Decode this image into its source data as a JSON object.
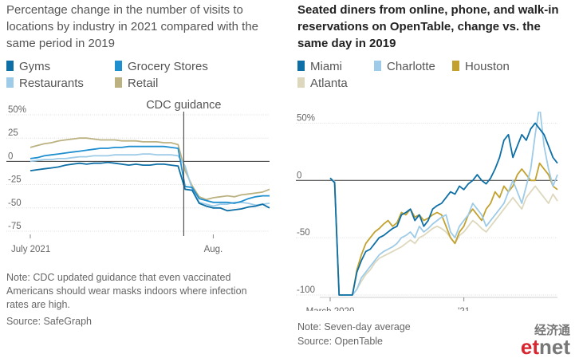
{
  "colors": {
    "miami": "#0d6fa6",
    "charlotte": "#9ecbe7",
    "houston": "#c2a12e",
    "atlanta": "#ddd8bd",
    "gyms": "#0d6fa6",
    "grocery": "#1f8fd0",
    "restaurants": "#9ecbe7",
    "retail": "#bcb281",
    "logo_red": "#d7262f",
    "logo_gray": "#777777"
  },
  "logo": {
    "chinese": "经济通",
    "latin_e": "e",
    "latin_t": "t",
    "latin_rest": "net"
  },
  "chart_data": [
    {
      "type": "line",
      "title": "Percentage change in the number of visits to locations by industry in 2021 compared with the same period in 2019",
      "ylim": [
        -75,
        50
      ],
      "yticks": [
        "50%",
        "25",
        "0",
        "-25",
        "-50",
        "-75"
      ],
      "xticks": [
        "July 2021",
        "Aug."
      ],
      "annotation": "CDC guidance",
      "note": "Note: CDC updated guidance that even vaccinated Americans should wear masks indoors where infection rates are high.",
      "source": "Source: SafeGraph",
      "series": [
        {
          "name": "Gyms",
          "values": [
            -10,
            -9,
            -8,
            -7,
            -6,
            -4,
            -3,
            -2,
            -3,
            -2,
            -2,
            -1,
            -2,
            -3,
            -4,
            -3,
            -4,
            -4,
            -3,
            -3,
            -4,
            -5,
            -30,
            -31,
            -45,
            -48,
            -50,
            -50,
            -53,
            -52,
            -51,
            -49,
            -48,
            -46,
            -50
          ]
        },
        {
          "name": "Grocery Stores",
          "values": [
            3,
            4,
            6,
            7,
            8,
            9,
            10,
            11,
            12,
            13,
            14,
            14,
            15,
            15,
            16,
            16,
            16,
            16,
            16,
            16,
            15,
            14,
            -27,
            -28,
            -40,
            -42,
            -44,
            -44,
            -44,
            -45,
            -43,
            -40,
            -38,
            -37,
            -37
          ]
        },
        {
          "name": "Restaurants",
          "values": [
            0,
            1,
            2,
            2,
            3,
            3,
            4,
            5,
            5,
            6,
            6,
            6,
            7,
            7,
            7,
            7,
            8,
            8,
            7,
            7,
            7,
            6,
            -5,
            -30,
            -44,
            -46,
            -48,
            -46,
            -46,
            -44,
            -44,
            -45,
            -47,
            -46,
            -45
          ]
        },
        {
          "name": "Retail",
          "values": [
            15,
            17,
            19,
            20,
            22,
            23,
            24,
            25,
            25,
            24,
            23,
            23,
            23,
            22,
            22,
            22,
            21,
            21,
            21,
            20,
            20,
            18,
            -10,
            -26,
            -38,
            -41,
            -39,
            -38,
            -37,
            -38,
            -36,
            -35,
            -34,
            -33,
            -30
          ]
        }
      ]
    },
    {
      "type": "line",
      "title": "Seated diners from online, phone, and walk-in reservations on OpenTable, change vs. the same day in 2019",
      "ylim": [
        -100,
        60
      ],
      "yticks": [
        "50%",
        "0",
        "-50",
        "-100"
      ],
      "xticks": [
        "March 2020",
        "'21"
      ],
      "note": "Note: Seven-day average",
      "source": "Source: OpenTable",
      "series": [
        {
          "name": "Miami",
          "values": [
            2,
            -2,
            -100,
            -100,
            -100,
            -100,
            -80,
            -70,
            -62,
            -60,
            -55,
            -50,
            -48,
            -45,
            -42,
            -40,
            -30,
            -28,
            -25,
            -35,
            -30,
            -40,
            -35,
            -25,
            -22,
            -20,
            -15,
            -10,
            -12,
            -5,
            -8,
            -3,
            0,
            5,
            0,
            -3,
            2,
            10,
            20,
            35,
            40,
            20,
            30,
            40,
            35,
            45,
            50,
            45,
            40,
            30,
            20,
            15
          ]
        },
        {
          "name": "Charlotte",
          "values": [
            2,
            -1,
            -100,
            -100,
            -100,
            -100,
            -95,
            -85,
            -80,
            -75,
            -70,
            -65,
            -62,
            -60,
            -58,
            -55,
            -50,
            -48,
            -45,
            -50,
            -40,
            -45,
            -42,
            -38,
            -35,
            -32,
            -30,
            -45,
            -50,
            -40,
            -35,
            -30,
            -20,
            -25,
            -30,
            -40,
            -35,
            -30,
            -25,
            -20,
            -10,
            0,
            -10,
            -20,
            -5,
            10,
            40,
            65,
            30,
            10,
            -5,
            5
          ]
        },
        {
          "name": "Houston",
          "values": [
            2,
            -2,
            -100,
            -100,
            -100,
            -100,
            -78,
            -65,
            -55,
            -50,
            -45,
            -42,
            -38,
            -35,
            -40,
            -37,
            -28,
            -30,
            -25,
            -32,
            -30,
            -35,
            -33,
            -30,
            -28,
            -30,
            -40,
            -50,
            -55,
            -45,
            -40,
            -30,
            -25,
            -30,
            -35,
            -25,
            -20,
            -10,
            -15,
            -5,
            -10,
            -5,
            5,
            10,
            5,
            0,
            0,
            15,
            10,
            5,
            -5,
            -8
          ]
        },
        {
          "name": "Atlanta",
          "values": [
            2,
            -1,
            -100,
            -100,
            -100,
            -100,
            -95,
            -88,
            -82,
            -78,
            -72,
            -68,
            -66,
            -64,
            -62,
            -60,
            -58,
            -55,
            -52,
            -55,
            -50,
            -48,
            -45,
            -42,
            -40,
            -42,
            -45,
            -50,
            -55,
            -48,
            -45,
            -40,
            -35,
            -38,
            -42,
            -45,
            -40,
            -35,
            -30,
            -25,
            -20,
            -15,
            -20,
            -25,
            -15,
            -10,
            -5,
            -10,
            -15,
            -20,
            -12,
            -18
          ]
        }
      ]
    }
  ]
}
